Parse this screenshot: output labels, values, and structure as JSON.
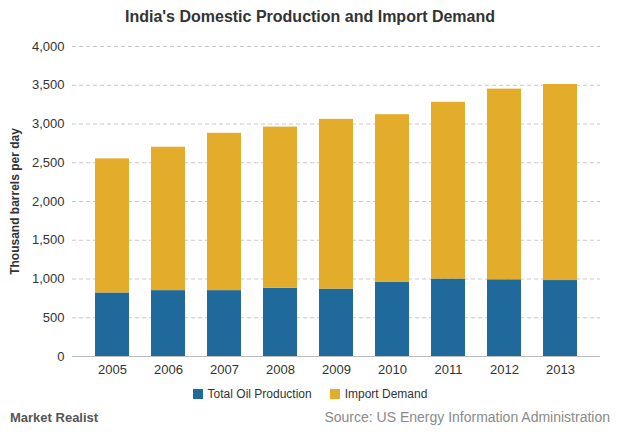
{
  "chart_data": {
    "type": "bar",
    "stacked": true,
    "title": "India's Domestic Production and Import Demand",
    "y_label": "Thousand barrels per day",
    "source": "Source: US Energy Information Administration",
    "watermark": "Market Realist",
    "categories": [
      "2005",
      "2006",
      "2007",
      "2008",
      "2009",
      "2010",
      "2011",
      "2012",
      "2013"
    ],
    "series": [
      {
        "name": "Total Oil Production",
        "color": "#1f6a9a",
        "values": [
          820,
          850,
          850,
          880,
          870,
          960,
          1000,
          990,
          980
        ]
      },
      {
        "name": "Import Demand",
        "color": "#e3ad2b",
        "values": [
          1730,
          1850,
          2030,
          2080,
          2190,
          2160,
          2280,
          2460,
          2530
        ]
      }
    ],
    "ylim": [
      0,
      4000
    ],
    "yticks": [
      0,
      500,
      {
        "value": 1000,
        "label": "1,000"
      },
      {
        "value": 1500,
        "label": "1,500"
      },
      {
        "value": 2000,
        "label": "2,000"
      },
      {
        "value": 2500,
        "label": "2,500"
      },
      {
        "value": 3000,
        "label": "3,000"
      },
      {
        "value": 3500,
        "label": "3,500"
      },
      {
        "value": 4000,
        "label": "4,000"
      }
    ],
    "grid": true,
    "legend": "bottom"
  }
}
